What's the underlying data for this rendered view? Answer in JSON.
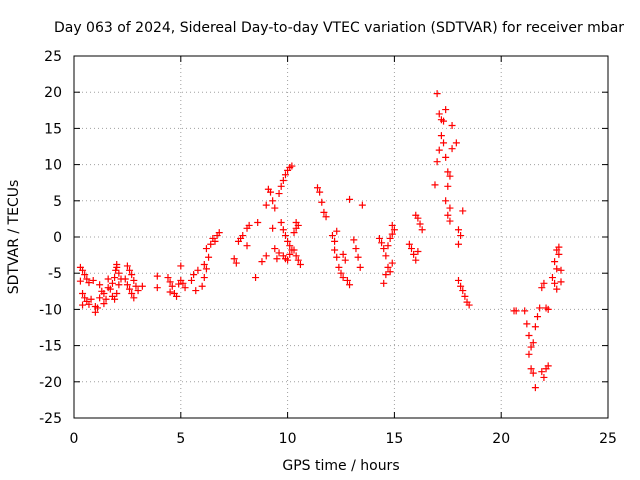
{
  "chart_data": {
    "type": "scatter",
    "title": "Day 063 of 2024, Sidereal Day-to-day VTEC variation (SDTVAR) for receiver mbar",
    "xlabel": "GPS time / hours",
    "ylabel": "SDTVAR / TECUs",
    "xlim": [
      0,
      25
    ],
    "ylim": [
      -25,
      25
    ],
    "xticks": [
      0,
      5,
      10,
      15,
      20,
      25
    ],
    "yticks": [
      -25,
      -20,
      -15,
      -10,
      -5,
      0,
      5,
      10,
      15,
      20,
      25
    ],
    "grid": true,
    "marker": "+",
    "series": [
      {
        "name": "SDTVAR",
        "color": "#ff0000",
        "points": [
          [
            0.3,
            -4.2
          ],
          [
            0.4,
            -4.6
          ],
          [
            0.5,
            -5.2
          ],
          [
            0.6,
            -5.8
          ],
          [
            0.7,
            -6.3
          ],
          [
            0.3,
            -6.1
          ],
          [
            0.4,
            -7.8
          ],
          [
            0.5,
            -8.4
          ],
          [
            0.6,
            -8.9
          ],
          [
            0.7,
            -9.3
          ],
          [
            0.8,
            -8.6
          ],
          [
            0.4,
            -9.4
          ],
          [
            0.9,
            -6.0
          ],
          [
            1.0,
            -9.6
          ],
          [
            1.0,
            -10.4
          ],
          [
            1.1,
            -9.8
          ],
          [
            1.2,
            -8.4
          ],
          [
            1.3,
            -7.5
          ],
          [
            1.2,
            -6.6
          ],
          [
            1.4,
            -7.8
          ],
          [
            1.5,
            -8.6
          ],
          [
            1.4,
            -9.2
          ],
          [
            1.6,
            -7.0
          ],
          [
            1.6,
            -5.8
          ],
          [
            1.7,
            -7.2
          ],
          [
            1.8,
            -6.4
          ],
          [
            1.9,
            -5.6
          ],
          [
            1.8,
            -8.2
          ],
          [
            1.9,
            -8.6
          ],
          [
            2.0,
            -7.8
          ],
          [
            2.0,
            -4.2
          ],
          [
            2.1,
            -5.0
          ],
          [
            2.2,
            -5.8
          ],
          [
            2.1,
            -6.6
          ],
          [
            2.0,
            -3.8
          ],
          [
            1.95,
            -4.6
          ],
          [
            2.4,
            -5.8
          ],
          [
            2.5,
            -6.6
          ],
          [
            2.6,
            -7.2
          ],
          [
            2.7,
            -7.8
          ],
          [
            2.8,
            -8.4
          ],
          [
            2.5,
            -4.0
          ],
          [
            2.6,
            -4.6
          ],
          [
            2.7,
            -5.2
          ],
          [
            2.8,
            -6.0
          ],
          [
            2.9,
            -6.8
          ],
          [
            3.0,
            -7.4
          ],
          [
            3.2,
            -6.8
          ],
          [
            3.9,
            -5.4
          ],
          [
            3.9,
            -7.0
          ],
          [
            4.4,
            -5.6
          ],
          [
            4.5,
            -6.2
          ],
          [
            4.6,
            -6.8
          ],
          [
            4.5,
            -7.6
          ],
          [
            4.7,
            -7.8
          ],
          [
            4.8,
            -8.2
          ],
          [
            4.9,
            -6.5
          ],
          [
            5.0,
            -6.0
          ],
          [
            5.1,
            -6.4
          ],
          [
            5.2,
            -7.0
          ],
          [
            5.0,
            -4.0
          ],
          [
            5.5,
            -6.0
          ],
          [
            5.6,
            -5.2
          ],
          [
            5.7,
            -7.4
          ],
          [
            5.8,
            -4.6
          ],
          [
            6.0,
            -6.8
          ],
          [
            6.1,
            -5.6
          ],
          [
            6.2,
            -4.4
          ],
          [
            6.1,
            -3.8
          ],
          [
            6.3,
            -2.8
          ],
          [
            6.2,
            -1.6
          ],
          [
            6.4,
            -1.0
          ],
          [
            6.5,
            -0.2
          ],
          [
            6.6,
            -0.6
          ],
          [
            6.7,
            0.2
          ],
          [
            6.8,
            0.6
          ],
          [
            7.7,
            -0.6
          ],
          [
            7.8,
            -0.2
          ],
          [
            7.9,
            0.2
          ],
          [
            7.5,
            -3.0
          ],
          [
            7.6,
            -3.6
          ],
          [
            8.1,
            1.2
          ],
          [
            8.2,
            1.6
          ],
          [
            8.1,
            -1.2
          ],
          [
            8.5,
            -5.6
          ],
          [
            8.6,
            2.0
          ],
          [
            8.8,
            -3.4
          ],
          [
            9.0,
            -2.6
          ],
          [
            9.0,
            4.4
          ],
          [
            9.1,
            6.6
          ],
          [
            9.2,
            6.2
          ],
          [
            9.3,
            5.0
          ],
          [
            9.4,
            4.0
          ],
          [
            9.3,
            1.2
          ],
          [
            9.4,
            -1.6
          ],
          [
            9.5,
            -3.0
          ],
          [
            9.6,
            -2.2
          ],
          [
            9.6,
            6.0
          ],
          [
            9.7,
            7.0
          ],
          [
            9.8,
            7.8
          ],
          [
            9.9,
            8.6
          ],
          [
            10.0,
            9.2
          ],
          [
            10.1,
            9.6
          ],
          [
            10.2,
            9.8
          ],
          [
            9.7,
            2.0
          ],
          [
            9.8,
            1.0
          ],
          [
            9.9,
            0.2
          ],
          [
            10.0,
            -0.6
          ],
          [
            10.1,
            -1.2
          ],
          [
            10.2,
            -1.8
          ],
          [
            9.8,
            -2.6
          ],
          [
            9.9,
            -3.0
          ],
          [
            10.0,
            -3.2
          ],
          [
            10.1,
            -2.4
          ],
          [
            10.3,
            -1.8
          ],
          [
            10.4,
            -2.6
          ],
          [
            10.5,
            -3.2
          ],
          [
            10.6,
            -3.8
          ],
          [
            10.3,
            0.6
          ],
          [
            10.4,
            1.2
          ],
          [
            10.5,
            1.6
          ],
          [
            10.4,
            2.0
          ],
          [
            11.4,
            6.8
          ],
          [
            11.5,
            6.2
          ],
          [
            11.6,
            4.8
          ],
          [
            11.7,
            3.4
          ],
          [
            11.8,
            2.8
          ],
          [
            12.2,
            -1.8
          ],
          [
            12.3,
            -2.8
          ],
          [
            12.4,
            -4.2
          ],
          [
            12.5,
            -5.0
          ],
          [
            12.6,
            -5.6
          ],
          [
            12.1,
            0.2
          ],
          [
            12.2,
            -0.6
          ],
          [
            12.3,
            0.8
          ],
          [
            12.6,
            -2.4
          ],
          [
            12.7,
            -3.2
          ],
          [
            12.8,
            -6.0
          ],
          [
            12.9,
            -6.6
          ],
          [
            12.9,
            5.2
          ],
          [
            13.1,
            -0.4
          ],
          [
            13.2,
            -1.6
          ],
          [
            13.3,
            -2.8
          ],
          [
            13.4,
            -4.2
          ],
          [
            13.5,
            4.4
          ],
          [
            14.3,
            -0.2
          ],
          [
            14.4,
            -0.8
          ],
          [
            14.5,
            -1.6
          ],
          [
            14.6,
            -2.6
          ],
          [
            14.5,
            -6.4
          ],
          [
            14.6,
            -5.2
          ],
          [
            14.7,
            -1.2
          ],
          [
            14.8,
            -0.2
          ],
          [
            14.9,
            0.4
          ],
          [
            15.0,
            1.0
          ],
          [
            14.9,
            1.6
          ],
          [
            14.7,
            -4.2
          ],
          [
            14.8,
            -4.8
          ],
          [
            14.9,
            -3.6
          ],
          [
            15.7,
            -1.0
          ],
          [
            15.8,
            -1.6
          ],
          [
            15.9,
            -2.4
          ],
          [
            16.0,
            -3.2
          ],
          [
            16.1,
            -2.0
          ],
          [
            16.0,
            3.0
          ],
          [
            16.1,
            2.6
          ],
          [
            16.2,
            1.8
          ],
          [
            16.3,
            1.0
          ],
          [
            16.9,
            7.2
          ],
          [
            17.0,
            10.4
          ],
          [
            17.1,
            12.0
          ],
          [
            17.2,
            14.0
          ],
          [
            17.3,
            16.0
          ],
          [
            17.4,
            17.6
          ],
          [
            17.0,
            19.8
          ],
          [
            17.1,
            17.0
          ],
          [
            17.2,
            16.2
          ],
          [
            17.3,
            13.0
          ],
          [
            17.4,
            11.0
          ],
          [
            17.5,
            9.0
          ],
          [
            17.5,
            7.0
          ],
          [
            17.4,
            5.0
          ],
          [
            17.6,
            4.0
          ],
          [
            17.5,
            3.0
          ],
          [
            17.6,
            2.2
          ],
          [
            17.7,
            15.4
          ],
          [
            17.7,
            12.2
          ],
          [
            17.6,
            8.4
          ],
          [
            17.9,
            13.0
          ],
          [
            18.0,
            1.0
          ],
          [
            18.0,
            -1.0
          ],
          [
            18.1,
            0.2
          ],
          [
            18.2,
            3.6
          ],
          [
            18.0,
            -6.0
          ],
          [
            18.1,
            -6.8
          ],
          [
            18.2,
            -7.4
          ],
          [
            18.3,
            -8.2
          ],
          [
            18.4,
            -9.0
          ],
          [
            18.5,
            -9.4
          ],
          [
            20.6,
            -10.2
          ],
          [
            20.7,
            -10.2
          ],
          [
            21.1,
            -10.2
          ],
          [
            21.2,
            -12.0
          ],
          [
            21.3,
            -13.6
          ],
          [
            21.4,
            -15.2
          ],
          [
            21.5,
            -14.6
          ],
          [
            21.6,
            -12.4
          ],
          [
            21.3,
            -16.2
          ],
          [
            21.4,
            -18.2
          ],
          [
            21.5,
            -18.8
          ],
          [
            21.6,
            -20.8
          ],
          [
            21.7,
            -11.0
          ],
          [
            21.8,
            -9.8
          ],
          [
            21.9,
            -18.6
          ],
          [
            22.0,
            -19.4
          ],
          [
            22.1,
            -18.2
          ],
          [
            22.2,
            -17.8
          ],
          [
            21.9,
            -7.0
          ],
          [
            22.0,
            -6.4
          ],
          [
            22.1,
            -9.8
          ],
          [
            22.2,
            -10.0
          ],
          [
            22.4,
            -5.6
          ],
          [
            22.5,
            -6.4
          ],
          [
            22.6,
            -7.2
          ],
          [
            22.6,
            -4.4
          ],
          [
            22.7,
            -2.4
          ],
          [
            22.5,
            -3.4
          ],
          [
            22.6,
            -1.8
          ],
          [
            22.7,
            -1.4
          ],
          [
            22.8,
            -4.6
          ],
          [
            22.8,
            -6.2
          ]
        ]
      }
    ]
  }
}
